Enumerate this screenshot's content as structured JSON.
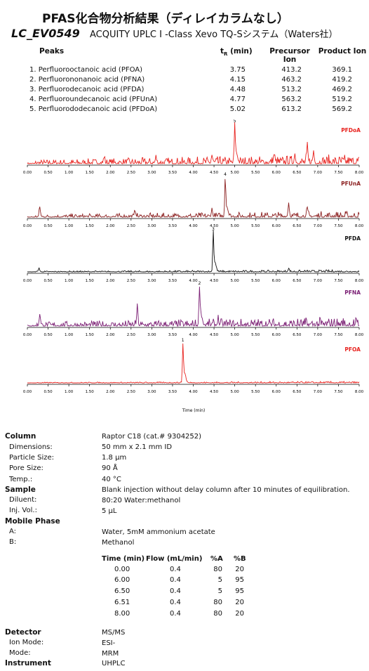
{
  "header": {
    "title": "PFAS化合物分析結果（ディレイカラムなし）",
    "code": "LC_EV0549",
    "system": "ACQUITY UPLC I -Class Xevo TQ-Sシステム（Waters社）"
  },
  "peaks_table": {
    "headers": {
      "peaks": "Peaks",
      "tr_main": "t",
      "tr_sub": "R",
      "tr_unit": " (min)",
      "precursor": "Precursor Ion",
      "product": "Product Ion"
    },
    "rows": [
      {
        "name": "1. Perfluorooctanoic acid (PFOA)",
        "tr": "3.75",
        "precursor": "413.2",
        "product": "369.1"
      },
      {
        "name": "2. Perfluorononanoic acid (PFNA)",
        "tr": "4.15",
        "precursor": "463.2",
        "product": "419.2"
      },
      {
        "name": "3. Perfluorodecanoic acid (PFDA)",
        "tr": "4.48",
        "precursor": "513.2",
        "product": "469.2"
      },
      {
        "name": "4. Perfluoroundecanoic acid (PFUnA)",
        "tr": "4.77",
        "precursor": "563.2",
        "product": "519.2"
      },
      {
        "name": "5. Perfluorododecanoic acid (PFDoA)",
        "tr": "5.02",
        "precursor": "613.2",
        "product": "569.2"
      }
    ]
  },
  "chart_data": {
    "type": "line",
    "xlabel": "Time (min)",
    "xlim": [
      0,
      8
    ],
    "x_ticks": [
      "0.00",
      "0.50",
      "1.00",
      "1.50",
      "2.00",
      "2.50",
      "3.00",
      "3.50",
      "4.00",
      "4.50",
      "5.00",
      "5.50",
      "6.00",
      "6.50",
      "7.00",
      "7.50",
      "8.00"
    ],
    "series": [
      {
        "name": "PFDoA",
        "color": "#e8231f",
        "peak_label": "5",
        "peak_time": 5.0,
        "peak_height": 1.0,
        "noise": 0.18,
        "minor_peaks": [
          [
            5.95,
            0.22
          ],
          [
            6.45,
            0.22
          ],
          [
            6.75,
            0.35
          ],
          [
            6.9,
            0.3
          ],
          [
            4.45,
            0.2
          ],
          [
            3.1,
            0.15
          ],
          [
            1.85,
            0.15
          ]
        ]
      },
      {
        "name": "PFUnA",
        "color": "#8b1f1f",
        "peak_label": "4",
        "peak_time": 4.77,
        "peak_height": 1.0,
        "noise": 0.12,
        "minor_peaks": [
          [
            0.3,
            0.25
          ],
          [
            2.6,
            0.15
          ],
          [
            4.45,
            0.18
          ],
          [
            6.3,
            0.35
          ],
          [
            6.75,
            0.15
          ]
        ]
      },
      {
        "name": "PFDA",
        "color": "#111111",
        "peak_label": "3",
        "peak_time": 4.48,
        "peak_height": 1.0,
        "noise": 0.04,
        "minor_peaks": [
          [
            0.28,
            0.1
          ],
          [
            6.3,
            0.08
          ]
        ]
      },
      {
        "name": "PFNA",
        "color": "#7a1d73",
        "peak_label": "2",
        "peak_time": 4.15,
        "peak_height": 1.0,
        "noise": 0.18,
        "minor_peaks": [
          [
            0.3,
            0.3
          ],
          [
            2.65,
            0.45
          ],
          [
            4.6,
            0.15
          ]
        ]
      },
      {
        "name": "PFOA",
        "color": "#e8231f",
        "peak_label": "1",
        "peak_time": 3.75,
        "peak_height": 1.0,
        "noise": 0.03,
        "minor_peaks": []
      }
    ]
  },
  "method": {
    "column_h": "Column",
    "column": "Raptor C18 (cat.# 9304252)",
    "dimensions_l": "Dimensions:",
    "dimensions": "50 mm x 2.1 mm ID",
    "particle_l": "Particle Size:",
    "particle": "1.8 µm",
    "pore_l": "Pore Size:",
    "pore": "90 Å",
    "temp_l": "Temp.:",
    "temp": "40 °C",
    "sample_h": "Sample",
    "sample": "Blank injection without delay column after 10 minutes of equilibration.",
    "diluent_l": "Diluent:",
    "diluent": "80:20 Water:methanol",
    "inj_l": "Inj. Vol.:",
    "inj": "5 µL",
    "mobile_h": "Mobile Phase",
    "a_l": "A:",
    "a": "Water, 5mM ammonium acetate",
    "b_l": "B:",
    "b": "Methanol",
    "gradient": {
      "headers": [
        "Time (min)",
        "Flow (mL/min)",
        "%A",
        "%B"
      ],
      "rows": [
        [
          "0.00",
          "0.4",
          "80",
          "20"
        ],
        [
          "6.00",
          "0.4",
          "5",
          "95"
        ],
        [
          "6.50",
          "0.4",
          "5",
          "95"
        ],
        [
          "6.51",
          "0.4",
          "80",
          "20"
        ],
        [
          "8.00",
          "0.4",
          "80",
          "20"
        ]
      ]
    },
    "detector_h": "Detector",
    "detector": "MS/MS",
    "ion_l": "Ion Mode:",
    "ion": "ESI-",
    "mode_l": "Mode:",
    "mode": "MRM",
    "instrument_h": "Instrument",
    "instrument": "UHPLC"
  }
}
